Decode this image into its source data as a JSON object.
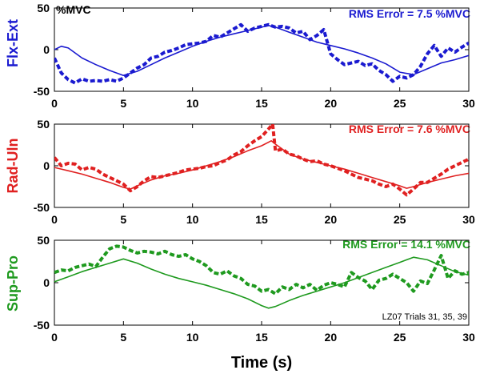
{
  "figure": {
    "xlabel": "Time (s)",
    "unit_label": "%MVC",
    "annotation": "LZ07 Trials 31, 35, 39"
  },
  "chart_data": [
    {
      "type": "line",
      "panel": "top",
      "ylabel": "Flx-Ext",
      "color": "#1a1ad0",
      "rms_text": "RMS Error = 7.5 %MVC",
      "xlim": [
        0,
        30
      ],
      "ylim": [
        -50,
        50
      ],
      "xticks": [
        0,
        5,
        10,
        15,
        20,
        25,
        30
      ],
      "yticks": [
        -50,
        0,
        50
      ],
      "series": [
        {
          "name": "target",
          "style": "solid",
          "x": [
            0,
            0.5,
            1,
            2,
            3,
            4,
            5,
            6,
            7,
            8,
            9,
            10,
            11,
            12,
            13,
            14,
            15,
            15.5,
            16,
            17,
            18,
            19,
            20,
            21,
            22,
            23,
            24,
            25,
            26,
            27,
            28,
            29,
            30
          ],
          "y": [
            0,
            4,
            2,
            -10,
            -18,
            -25,
            -31,
            -26,
            -18,
            -10,
            -3,
            4,
            10,
            15,
            19,
            23,
            27,
            29,
            27,
            21,
            15,
            9,
            5,
            1,
            -4,
            -10,
            -17,
            -27,
            -30,
            -23,
            -16,
            -12,
            -7
          ]
        },
        {
          "name": "response",
          "style": "dashed",
          "x": [
            0,
            0.5,
            1,
            1.5,
            2,
            2.5,
            3,
            3.5,
            4,
            4.5,
            5,
            5.5,
            6,
            6.5,
            7,
            7.5,
            8,
            8.5,
            9,
            9.5,
            10,
            10.5,
            11,
            11.5,
            12,
            12.5,
            13,
            13.5,
            14,
            14.5,
            15,
            15.5,
            16,
            16.5,
            17,
            17.5,
            18,
            18.5,
            19,
            19.5,
            20,
            20.5,
            21,
            21.5,
            22,
            22.5,
            23,
            23.5,
            24,
            24.5,
            25,
            25.5,
            26,
            26.5,
            27,
            27.5,
            28,
            28.5,
            29,
            29.5,
            30
          ],
          "y": [
            -10,
            -28,
            -36,
            -40,
            -35,
            -38,
            -37,
            -38,
            -36,
            -38,
            -34,
            -28,
            -22,
            -18,
            -10,
            -8,
            -3,
            -1,
            2,
            6,
            7,
            8,
            10,
            17,
            15,
            20,
            25,
            30,
            22,
            26,
            28,
            30,
            27,
            28,
            26,
            20,
            22,
            12,
            17,
            24,
            -5,
            -12,
            -18,
            -16,
            -14,
            -19,
            -17,
            -25,
            -30,
            -38,
            -32,
            -34,
            -30,
            -20,
            -5,
            5,
            -8,
            2,
            -3,
            3,
            8
          ]
        }
      ]
    },
    {
      "type": "line",
      "panel": "middle",
      "ylabel": "Rad-Uln",
      "color": "#e02020",
      "rms_text": "RMS Error = 7.6 %MVC",
      "xlim": [
        0,
        30
      ],
      "ylim": [
        -50,
        50
      ],
      "xticks": [
        0,
        5,
        10,
        15,
        20,
        25,
        30
      ],
      "yticks": [
        -50,
        0,
        50
      ],
      "series": [
        {
          "name": "target",
          "style": "solid",
          "x": [
            0,
            1,
            2,
            3,
            4,
            5,
            5.5,
            6,
            7,
            8,
            9,
            10,
            11,
            12,
            13,
            14,
            15,
            15.7,
            16,
            17,
            18,
            19,
            20,
            21,
            22,
            23,
            24,
            25,
            25.5,
            26,
            27,
            28,
            29,
            30
          ],
          "y": [
            -2,
            -6,
            -10,
            -15,
            -20,
            -26,
            -28,
            -24,
            -17,
            -12,
            -9,
            -5,
            0,
            5,
            11,
            18,
            24,
            30,
            26,
            14,
            8,
            4,
            0,
            -4,
            -9,
            -14,
            -19,
            -24,
            -27,
            -25,
            -20,
            -16,
            -12,
            -9
          ]
        },
        {
          "name": "response",
          "style": "dashed",
          "x": [
            0,
            0.5,
            1,
            1.5,
            2,
            2.5,
            3,
            3.5,
            4,
            4.5,
            5,
            5.5,
            6,
            6.5,
            7,
            7.5,
            8,
            8.5,
            9,
            9.5,
            10,
            10.5,
            11,
            11.5,
            12,
            12.5,
            13,
            13.5,
            14,
            14.5,
            15,
            15.5,
            15.8,
            16,
            16.5,
            17,
            17.5,
            18,
            18.5,
            19,
            19.5,
            20,
            20.5,
            21,
            21.5,
            22,
            22.5,
            23,
            23.5,
            24,
            24.5,
            25,
            25.5,
            26,
            26.5,
            27,
            27.5,
            28,
            28.5,
            29,
            29.5,
            30
          ],
          "y": [
            10,
            0,
            3,
            2,
            -5,
            -2,
            -4,
            -10,
            -14,
            -18,
            -22,
            -30,
            -25,
            -18,
            -13,
            -14,
            -12,
            -10,
            -8,
            -5,
            -4,
            -3,
            -1,
            0,
            4,
            7,
            13,
            17,
            24,
            30,
            35,
            44,
            50,
            18,
            20,
            14,
            12,
            8,
            5,
            6,
            2,
            0,
            -3,
            -6,
            -10,
            -14,
            -16,
            -18,
            -22,
            -25,
            -22,
            -28,
            -35,
            -28,
            -20,
            -20,
            -15,
            -10,
            -4,
            0,
            4,
            8
          ]
        }
      ]
    },
    {
      "type": "line",
      "panel": "bottom",
      "ylabel": "Sup-Pro",
      "color": "#1f9a1f",
      "rms_text": "RMS Error = 14.1 %MVC",
      "xlim": [
        0,
        30
      ],
      "ylim": [
        -50,
        50
      ],
      "xticks": [
        0,
        5,
        10,
        15,
        20,
        25,
        30
      ],
      "yticks": [
        -50,
        0,
        50
      ],
      "series": [
        {
          "name": "target",
          "style": "solid",
          "x": [
            0,
            1,
            2,
            3,
            4,
            5,
            6,
            7,
            8,
            9,
            10,
            11,
            12,
            13,
            14,
            15,
            15.5,
            16,
            17,
            18,
            19,
            20,
            21,
            22,
            23,
            24,
            25,
            26,
            27,
            28,
            29,
            30
          ],
          "y": [
            1,
            7,
            13,
            18,
            23,
            28,
            23,
            16,
            10,
            5,
            1,
            -3,
            -8,
            -13,
            -19,
            -27,
            -30,
            -28,
            -21,
            -15,
            -10,
            -5,
            0,
            6,
            12,
            18,
            24,
            30,
            27,
            20,
            13,
            9
          ]
        },
        {
          "name": "response",
          "style": "dashed",
          "x": [
            0,
            0.5,
            1,
            1.5,
            2,
            2.5,
            3,
            3.5,
            4,
            4.5,
            5,
            5.5,
            6,
            6.5,
            7,
            7.5,
            8,
            8.5,
            9,
            9.5,
            10,
            10.5,
            11,
            11.5,
            12,
            12.5,
            13,
            13.5,
            14,
            14.5,
            15,
            15.5,
            16,
            16.5,
            17,
            17.5,
            18,
            18.5,
            19,
            19.5,
            20,
            20.5,
            21,
            21.5,
            22,
            22.5,
            23,
            23.5,
            24,
            24.5,
            25,
            25.5,
            26,
            26.5,
            27,
            27.5,
            28,
            28.5,
            29,
            29.5,
            30
          ],
          "y": [
            12,
            15,
            14,
            18,
            20,
            22,
            19,
            30,
            40,
            43,
            42,
            38,
            35,
            37,
            36,
            34,
            37,
            33,
            31,
            33,
            28,
            25,
            20,
            12,
            10,
            14,
            8,
            5,
            -2,
            -4,
            -10,
            -8,
            -13,
            -5,
            -8,
            -2,
            -6,
            -2,
            -9,
            -3,
            0,
            -2,
            -5,
            12,
            6,
            2,
            -8,
            3,
            5,
            10,
            5,
            0,
            -10,
            2,
            -1,
            15,
            32,
            5,
            14,
            10,
            12
          ]
        }
      ]
    }
  ]
}
